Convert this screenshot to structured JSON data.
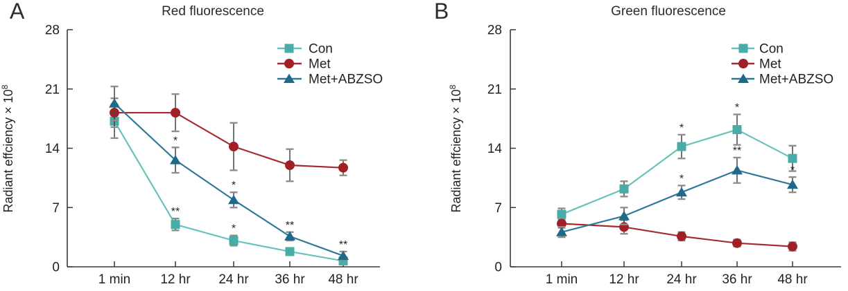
{
  "style": {
    "background": "#ffffff",
    "axis_color": "#39393a",
    "text_color": "#231f20",
    "errorbar_color": "#444444",
    "errorbar_cap_color": "#8e8e8e",
    "star_color": "#26262e"
  },
  "chart_data": [
    {
      "type": "line",
      "panel_letter": "A",
      "title": "Red fluorescence",
      "xlabel": "",
      "ylabel": "Radiant effciency × 10⁸",
      "ylabel_base": "Radiant effciency × 10",
      "ylabel_exponent": "8",
      "categories": [
        "1 min",
        "12 hr",
        "24 hr",
        "36 hr",
        "48 hr"
      ],
      "ylim": [
        0,
        28
      ],
      "yticks": [
        0,
        7,
        14,
        21,
        28
      ],
      "grid": false,
      "legend_position": "top-right",
      "error_bars": true,
      "series": [
        {
          "name": "Con",
          "marker": "square",
          "marker_color": "#47ada6",
          "line_color": "#68c2bb",
          "values": [
            17.2,
            5.0,
            3.1,
            1.8,
            0.7
          ],
          "errors": [
            2.0,
            0.7,
            0.6,
            0.4,
            0.35
          ],
          "significance": [
            "",
            "**",
            "*",
            "",
            ""
          ]
        },
        {
          "name": "Met",
          "marker": "circle",
          "marker_color": "#a02026",
          "line_color": "#a52b30",
          "values": [
            18.2,
            18.2,
            14.2,
            12.0,
            11.7
          ],
          "errors": [
            1.7,
            2.2,
            2.8,
            1.9,
            0.9
          ],
          "significance": [
            "",
            "",
            "",
            "",
            ""
          ]
        },
        {
          "name": "Met+ABZSO",
          "marker": "triangle",
          "marker_color": "#1e6a8b",
          "line_color": "#2e7a95",
          "values": [
            19.3,
            12.6,
            7.9,
            3.6,
            1.3
          ],
          "errors": [
            2.0,
            1.5,
            0.9,
            0.5,
            0.5
          ],
          "significance": [
            "",
            "*",
            "*",
            "**",
            "**"
          ]
        }
      ]
    },
    {
      "type": "line",
      "panel_letter": "B",
      "title": "Green fluorescence",
      "xlabel": "",
      "ylabel": "Radiant effciency × 10⁸",
      "ylabel_base": "Radiant effciency × 10",
      "ylabel_exponent": "8",
      "categories": [
        "1 min",
        "12 hr",
        "24 hr",
        "36 hr",
        "48 hr"
      ],
      "ylim": [
        0,
        28
      ],
      "yticks": [
        0,
        7,
        14,
        21,
        28
      ],
      "grid": false,
      "legend_position": "top-right",
      "error_bars": true,
      "series": [
        {
          "name": "Con",
          "marker": "square",
          "marker_color": "#47ada6",
          "line_color": "#68c2bb",
          "values": [
            6.2,
            9.2,
            14.2,
            16.2,
            12.8
          ],
          "errors": [
            0.7,
            0.9,
            1.4,
            1.8,
            1.5
          ],
          "significance": [
            "",
            "",
            "*",
            "*",
            ""
          ]
        },
        {
          "name": "Met",
          "marker": "circle",
          "marker_color": "#a02026",
          "line_color": "#a52b30",
          "values": [
            5.1,
            4.7,
            3.6,
            2.8,
            2.4
          ],
          "errors": [
            0.5,
            0.8,
            0.5,
            0.4,
            0.5
          ],
          "significance": [
            "",
            "",
            "",
            "",
            ""
          ]
        },
        {
          "name": "Met+ABZSO",
          "marker": "triangle",
          "marker_color": "#1e6a8b",
          "line_color": "#2e7a95",
          "values": [
            4.1,
            6.0,
            8.8,
            11.4,
            9.7
          ],
          "errors": [
            0.6,
            1.0,
            0.8,
            1.5,
            0.9
          ],
          "significance": [
            "",
            "",
            "*",
            "**",
            "*"
          ]
        }
      ]
    }
  ]
}
